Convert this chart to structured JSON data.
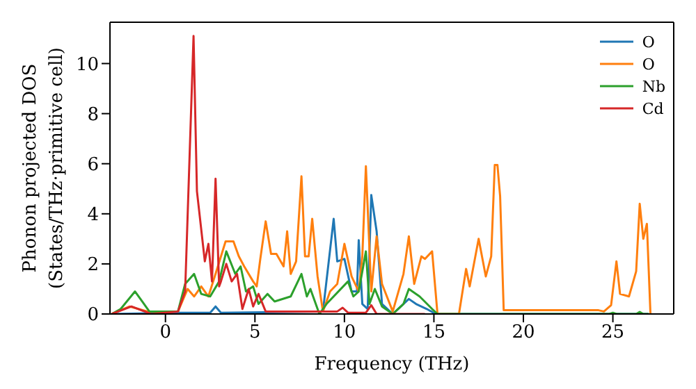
{
  "chart_data": {
    "type": "line",
    "xlabel": "Frequency (THz)",
    "ylabel": "Phonon projected DOS\n(States/THz·primitive cell)",
    "xlim": [
      -3.1,
      28.4
    ],
    "ylim": [
      0,
      11.65
    ],
    "xticks": [
      0,
      5,
      10,
      15,
      20,
      25
    ],
    "yticks": [
      0,
      2,
      4,
      6,
      8,
      10
    ],
    "legend": "top right",
    "marker": "none",
    "line_style": "solid",
    "series": [
      {
        "name": "O",
        "color": "#1f77b4",
        "x": [
          -3,
          0.7,
          2.5,
          2.8,
          3.1,
          8.8,
          9.4,
          9.6,
          10.0,
          10.4,
          10.7,
          10.8,
          11.0,
          11.3,
          11.5,
          11.8,
          12.1,
          12.7,
          13.6,
          14.0,
          14.6,
          15.1,
          27
        ],
        "values": [
          0,
          0.05,
          0.05,
          0.3,
          0.05,
          0.1,
          3.8,
          2.1,
          2.2,
          0.9,
          0.9,
          2.95,
          0.4,
          0.2,
          4.75,
          3.3,
          0.4,
          0,
          0.6,
          0.4,
          0.2,
          0,
          0
        ]
      },
      {
        "name": "O",
        "color": "#ff7f0e",
        "x": [
          -3,
          -2,
          -1,
          0.7,
          1.24,
          1.6,
          2.0,
          2.4,
          2.8,
          3.36,
          3.8,
          4.1,
          4.4,
          4.9,
          5.1,
          5.3,
          5.6,
          5.9,
          6.2,
          6.6,
          6.8,
          7.0,
          7.3,
          7.6,
          7.8,
          8.0,
          8.2,
          8.5,
          8.8,
          9.2,
          9.6,
          10.0,
          10.4,
          10.8,
          11.0,
          11.2,
          11.5,
          11.8,
          12.1,
          12.7,
          13.3,
          13.6,
          13.9,
          14.3,
          14.5,
          14.9,
          15.2,
          16.4,
          16.8,
          17.0,
          17.5,
          17.9,
          18.2,
          18.4,
          18.55,
          18.7,
          18.9,
          24.2,
          24.5,
          24.9,
          25.2,
          25.4,
          25.9,
          26.3,
          26.5,
          26.7,
          26.9,
          27.1
        ],
        "values": [
          0,
          0.3,
          0.1,
          0.1,
          1.0,
          0.7,
          1.1,
          0.7,
          1.6,
          2.9,
          2.9,
          2.3,
          1.9,
          1.3,
          1.1,
          2.2,
          3.7,
          2.4,
          2.4,
          1.9,
          3.3,
          1.6,
          2.1,
          5.5,
          2.3,
          2.3,
          3.8,
          1.5,
          0.1,
          0.9,
          1.2,
          2.8,
          1.5,
          0.9,
          2.3,
          5.9,
          0.9,
          3.1,
          1.2,
          0.1,
          1.6,
          3.1,
          1.2,
          2.3,
          2.2,
          2.5,
          0,
          0,
          1.8,
          1.1,
          3.0,
          1.5,
          2.3,
          5.95,
          5.95,
          4.7,
          0.15,
          0.15,
          0.1,
          0.35,
          2.1,
          0.8,
          0.7,
          1.7,
          4.4,
          3.0,
          3.6,
          0
        ]
      },
      {
        "name": "Nb",
        "color": "#2ca02c",
        "x": [
          -3,
          -2.5,
          -1.7,
          -1.3,
          -0.9,
          0.7,
          1.1,
          1.6,
          2.0,
          2.5,
          3.0,
          3.4,
          3.9,
          4.2,
          4.5,
          4.9,
          5.2,
          5.7,
          6.1,
          7.0,
          7.6,
          7.9,
          8.1,
          8.6,
          9.0,
          10.2,
          10.5,
          10.8,
          11.2,
          11.4,
          11.7,
          12.1,
          12.7,
          13.3,
          13.6,
          14.2,
          14.9,
          15.2,
          24.8,
          25.0,
          25.2,
          26.3,
          26.5,
          26.7,
          27
        ],
        "values": [
          0,
          0.2,
          0.9,
          0.5,
          0.1,
          0.1,
          1.2,
          1.6,
          0.8,
          0.7,
          1.3,
          2.5,
          1.6,
          1.9,
          0.9,
          1.1,
          0.4,
          0.8,
          0.5,
          0.7,
          1.6,
          0.7,
          1.0,
          0,
          0.4,
          1.3,
          0.7,
          0.9,
          2.5,
          0.4,
          1.0,
          0.3,
          0,
          0.4,
          1.0,
          0.7,
          0.2,
          0,
          0,
          0.05,
          0,
          0,
          0.08,
          0,
          0
        ]
      },
      {
        "name": "Cd",
        "color": "#d62728",
        "x": [
          -3,
          -1.9,
          -0.8,
          0.7,
          1.1,
          1.57,
          1.76,
          2.2,
          2.4,
          2.6,
          2.8,
          3.0,
          3.1,
          3.4,
          3.7,
          4.0,
          4.3,
          4.65,
          4.9,
          5.2,
          5.6,
          9.6,
          9.9,
          10.2,
          11.2,
          11.5,
          11.8,
          14.5
        ],
        "values": [
          0,
          0.3,
          0,
          0.1,
          0.9,
          11.1,
          4.9,
          2.1,
          2.8,
          1.3,
          5.4,
          1.1,
          1.3,
          2.0,
          1.3,
          1.6,
          0.2,
          1.0,
          0.3,
          0.8,
          0.1,
          0.1,
          0.25,
          0.05,
          0.05,
          0.35,
          0,
          0
        ]
      }
    ]
  }
}
